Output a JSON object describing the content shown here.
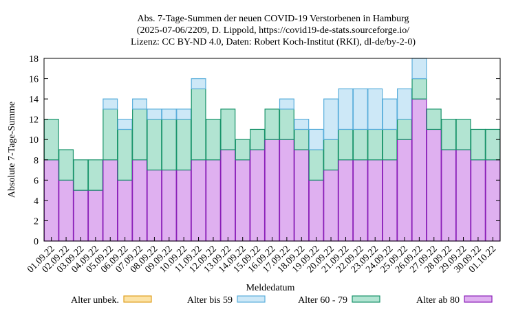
{
  "chart_data": {
    "type": "bar",
    "stacked": true,
    "title": [
      "Abs. 7-Tage-Summen der neuen COVID-19 Verstorbenen in Hamburg",
      "(2025-07-06/2209, D. Lippold, https://covid19-de-stats.sourceforge.io/",
      "Lizenz: CC BY-ND 4.0, Daten: Robert Koch-Institut (RKI), dl-de/by-2-0)"
    ],
    "xlabel": "Meldedatum",
    "ylabel": "Absolute 7-Tage-Summe",
    "ylim": [
      0,
      18
    ],
    "yticks": [
      0,
      2,
      4,
      6,
      8,
      10,
      12,
      14,
      16,
      18
    ],
    "grid": false,
    "legend_position": "bottom",
    "categories": [
      "01.09.22",
      "02.09.22",
      "03.09.22",
      "04.09.22",
      "05.09.22",
      "06.09.22",
      "07.09.22",
      "08.09.22",
      "09.09.22",
      "10.09.22",
      "11.09.22",
      "12.09.22",
      "13.09.22",
      "14.09.22",
      "15.09.22",
      "16.09.22",
      "17.09.22",
      "18.09.22",
      "19.09.22",
      "20.09.22",
      "21.09.22",
      "22.09.22",
      "23.09.22",
      "24.09.22",
      "25.09.22",
      "26.09.22",
      "27.09.22",
      "28.09.22",
      "29.09.22",
      "30.09.22",
      "01.10.22"
    ],
    "series": [
      {
        "name": "Alter ab 80",
        "fill": "#dfb0f0",
        "stroke": "#8a1fb8",
        "values": [
          8,
          6,
          5,
          5,
          8,
          6,
          8,
          7,
          7,
          7,
          8,
          8,
          9,
          8,
          9,
          10,
          10,
          9,
          6,
          7,
          8,
          8,
          8,
          8,
          10,
          14,
          11,
          9,
          9,
          8,
          8
        ]
      },
      {
        "name": "Alter 60 - 79",
        "fill": "#b2e4d2",
        "stroke": "#18936a",
        "values": [
          4,
          3,
          3,
          3,
          5,
          5,
          5,
          5,
          5,
          5,
          7,
          4,
          4,
          2,
          2,
          3,
          3,
          2,
          3,
          3,
          3,
          3,
          3,
          3,
          2,
          2,
          2,
          3,
          3,
          3,
          3
        ]
      },
      {
        "name": "Alter bis 59",
        "fill": "#cde8f7",
        "stroke": "#5aaedb",
        "values": [
          0,
          0,
          0,
          0,
          1,
          1,
          1,
          1,
          1,
          1,
          1,
          0,
          0,
          0,
          0,
          0,
          1,
          1,
          2,
          4,
          4,
          4,
          4,
          3,
          3,
          2,
          0,
          0,
          0,
          0,
          0
        ]
      },
      {
        "name": "Alter unbek.",
        "fill": "#fce3a6",
        "stroke": "#e0a020",
        "values": [
          0,
          0,
          0,
          0,
          0,
          0,
          0,
          0,
          0,
          0,
          0,
          0,
          0,
          0,
          0,
          0,
          0,
          0,
          0,
          0,
          0,
          0,
          0,
          0,
          0,
          0,
          0,
          0,
          0,
          0,
          0
        ]
      }
    ],
    "legend_order": [
      "Alter unbek.",
      "Alter bis 59",
      "Alter 60 - 79",
      "Alter ab 80"
    ]
  }
}
